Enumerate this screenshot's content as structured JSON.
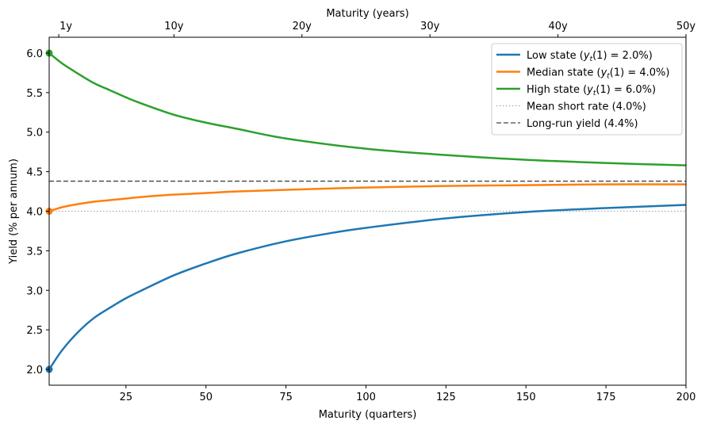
{
  "chart_data": {
    "type": "line",
    "xlabel": "Maturity (quarters)",
    "ylabel": "Yield (% per annum)",
    "xlabel_top": "Maturity (years)",
    "xlim": [
      1,
      200
    ],
    "ylim": [
      1.8,
      6.2
    ],
    "x_ticks": [
      25,
      50,
      75,
      100,
      125,
      150,
      175,
      200
    ],
    "y_ticks": [
      2.0,
      2.5,
      3.0,
      3.5,
      4.0,
      4.5,
      5.0,
      5.5,
      6.0
    ],
    "x_ticks_top": [
      {
        "value": 4,
        "label": "1y"
      },
      {
        "value": 40,
        "label": "10y"
      },
      {
        "value": 80,
        "label": "20y"
      },
      {
        "value": 120,
        "label": "30y"
      },
      {
        "value": 160,
        "label": "40y"
      },
      {
        "value": 200,
        "label": "50y"
      }
    ],
    "grid": false,
    "legend_position": "top-right",
    "series": [
      {
        "name": "Low state  ($y_t(1) = 2.0\\%$)",
        "label_prefix": "Low state  (",
        "label_math_base": "y",
        "label_math_sub": "t",
        "label_math_rest": "(1) = 2.0%",
        "label_suffix": ")",
        "color": "#1f77b4",
        "style": "solid",
        "x": [
          1,
          5,
          10,
          15,
          20,
          25,
          30,
          40,
          50,
          60,
          75,
          90,
          100,
          125,
          150,
          175,
          200
        ],
        "y": [
          2.0,
          2.24,
          2.47,
          2.65,
          2.78,
          2.9,
          3.0,
          3.19,
          3.34,
          3.47,
          3.62,
          3.73,
          3.79,
          3.91,
          3.99,
          4.04,
          4.08
        ],
        "start_marker": true
      },
      {
        "name": "Median state ($y_t(1) = 4.0\\%$)",
        "label_prefix": "Median state (",
        "label_math_base": "y",
        "label_math_sub": "t",
        "label_math_rest": "(1) = 4.0%",
        "label_suffix": ")",
        "color": "#ff7f0e",
        "style": "solid",
        "x": [
          1,
          5,
          10,
          15,
          20,
          25,
          30,
          40,
          50,
          60,
          75,
          100,
          125,
          150,
          175,
          200
        ],
        "y": [
          4.0,
          4.05,
          4.09,
          4.12,
          4.14,
          4.16,
          4.18,
          4.21,
          4.23,
          4.25,
          4.27,
          4.3,
          4.32,
          4.33,
          4.34,
          4.34
        ],
        "start_marker": true
      },
      {
        "name": "High state ($y_t(1) = 6.0\\%$)",
        "label_prefix": "High state (",
        "label_math_base": "y",
        "label_math_sub": "t",
        "label_math_rest": "(1) = 6.0%",
        "label_suffix": ")",
        "color": "#2ca02c",
        "style": "solid",
        "x": [
          1,
          5,
          10,
          15,
          20,
          25,
          30,
          40,
          50,
          60,
          75,
          100,
          125,
          150,
          175,
          200
        ],
        "y": [
          6.0,
          5.87,
          5.74,
          5.62,
          5.53,
          5.44,
          5.36,
          5.22,
          5.12,
          5.04,
          4.92,
          4.79,
          4.71,
          4.65,
          4.61,
          4.58
        ],
        "start_marker": true
      }
    ],
    "reference_lines": [
      {
        "name": "Mean short rate (4.0%)",
        "y": 4.0,
        "color": "#aaaaaa",
        "style": "dotted"
      },
      {
        "name": "Long-run yield (4.4%)",
        "y": 4.38,
        "color": "#444444",
        "style": "dashed"
      }
    ]
  }
}
